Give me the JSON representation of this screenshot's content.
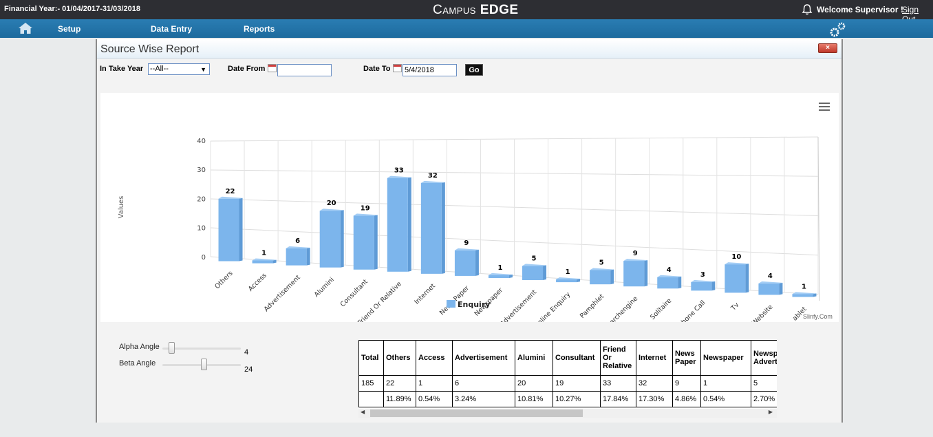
{
  "topbar": {
    "financial_year": "Financial Year:- 01/04/2017-31/03/2018",
    "brand_part1": "Campus",
    "brand_part2": "EDGE",
    "welcome": "Welcome Supervisor !",
    "signout": "Sign Out"
  },
  "nav": {
    "items": [
      "Setup",
      "Data Entry",
      "Reports"
    ]
  },
  "panel": {
    "title": "Source Wise Report",
    "close_label": "×"
  },
  "filters": {
    "intake_label": "In Take Year",
    "intake_value": "--All--",
    "date_from_label": "Date From",
    "date_from_value": "",
    "date_to_label": "Date To",
    "date_to_value": "5/4/2018",
    "go_label": "Go"
  },
  "chart_data": {
    "type": "bar",
    "ylabel": "Values",
    "ylim": [
      0,
      40
    ],
    "yticks": [
      "0",
      "10",
      "20",
      "30",
      "40"
    ],
    "categories": [
      "Others",
      "Access",
      "Advertisement",
      "Alumini",
      "Consultant",
      "Friend Or Relative",
      "Internet",
      "News Paper",
      "Newspaper",
      "Online Advertisement",
      "Online Enquiry",
      "Pamphlet",
      "Searchengine",
      "Solitaire",
      "Telephone Call",
      "Tv",
      "Website",
      "Yablet"
    ],
    "category_labels_visible": [
      "Others",
      "Access",
      "Advertisement",
      "Alumini",
      "Consultant",
      "Friend Or Relative",
      "Internet",
      "News Paper",
      "Newspaper",
      "r Advertisement",
      "Online Enquiry",
      "Pamphlet",
      "Searchengine",
      "Solitaire",
      "phone Call",
      "Tv",
      "Website",
      "ablet"
    ],
    "series": [
      {
        "name": "Enquiry",
        "values": [
          22,
          1,
          6,
          20,
          19,
          33,
          32,
          9,
          1,
          5,
          1,
          5,
          9,
          4,
          3,
          10,
          4,
          1
        ]
      }
    ],
    "legend": "bottom-center",
    "grid": true,
    "color": "#7cb5ec",
    "credit": "Slinfy.Com"
  },
  "sliders": {
    "alpha_label": "Alpha Angle",
    "alpha_value": "4",
    "beta_label": "Beta Angle",
    "beta_value": "24"
  },
  "table": {
    "headers": [
      "Total",
      "Others",
      "Access",
      "Advertisement",
      "Alumini",
      "Consultant",
      "Friend Or Relative",
      "Internet",
      "News Paper",
      "Newspaper",
      "Newspaper Advertisement"
    ],
    "counts": [
      "185",
      "22",
      "1",
      "6",
      "20",
      "19",
      "33",
      "32",
      "9",
      "1",
      "5"
    ],
    "percents": [
      "",
      "11.89%",
      "0.54%",
      "3.24%",
      "10.81%",
      "10.27%",
      "17.84%",
      "17.30%",
      "4.86%",
      "0.54%",
      "2.70%"
    ]
  }
}
